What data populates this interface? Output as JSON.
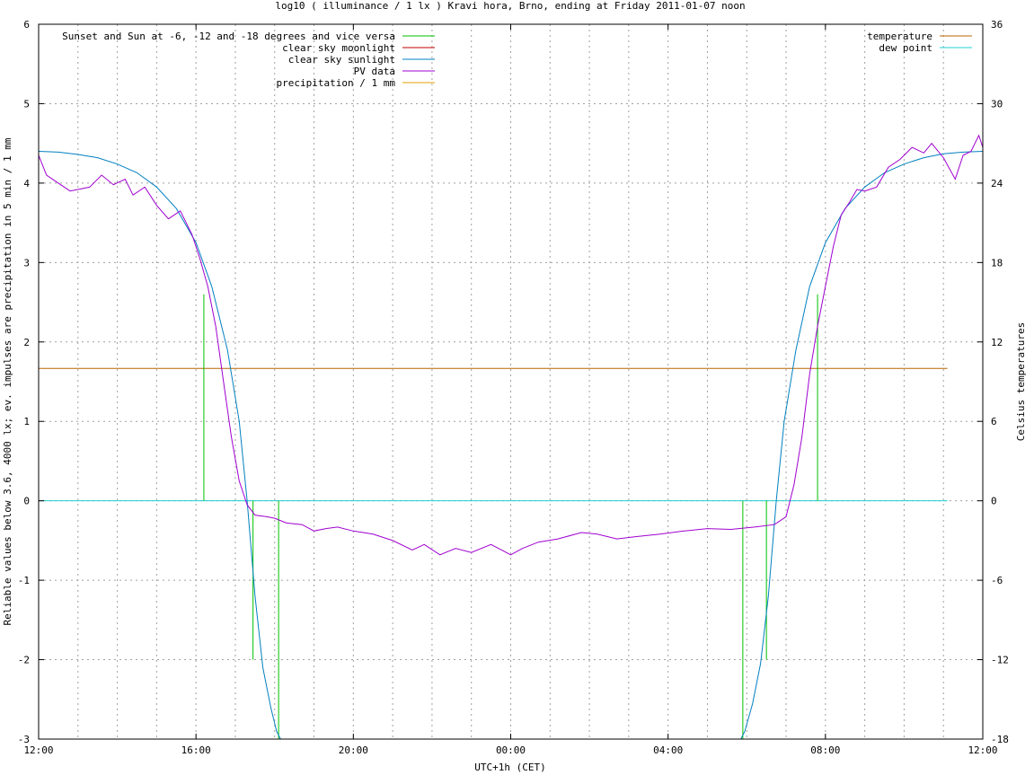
{
  "chart_data": {
    "type": "line",
    "title": "log10 ( illuminance / 1 lx ) Kravi hora, Brno, ending at Friday 2011-01-07 noon",
    "xlabel": "UTC+1h (CET)",
    "ylabel": "Reliable values below 3.6, 4000 lx; ev. impulses are precipitation in 5 min / 1 mm",
    "y2label": "Celsius temperatures",
    "xlim_hours": [
      0,
      24
    ],
    "ylim": [
      -3,
      6
    ],
    "y2lim": [
      -18,
      36
    ],
    "x_ticks": [
      {
        "hour": 0,
        "label": "12:00"
      },
      {
        "hour": 4,
        "label": "16:00"
      },
      {
        "hour": 8,
        "label": "20:00"
      },
      {
        "hour": 12,
        "label": "00:00"
      },
      {
        "hour": 16,
        "label": "04:00"
      },
      {
        "hour": 20,
        "label": "08:00"
      },
      {
        "hour": 24,
        "label": "12:00"
      }
    ],
    "y_ticks": [
      "6",
      "5",
      "4",
      "3",
      "2",
      "1",
      "0",
      "-1",
      "-2",
      "-3"
    ],
    "y2_ticks": [
      "36",
      "30",
      "24",
      "18",
      "12",
      "6",
      "0",
      "-6",
      "-12",
      "-18"
    ],
    "grid": true,
    "legend_left": [
      {
        "name": "Sunset and Sun at -6, -12 and -18 degrees and vice versa",
        "color": "#00c000"
      },
      {
        "name": "clear sky moonlight",
        "color": "#c00000"
      },
      {
        "name": "clear sky sunlight",
        "color": "#0080c0"
      },
      {
        "name": "PV data",
        "color": "#a000d0"
      },
      {
        "name": "precipitation / 1 mm",
        "color": "#e0a000"
      }
    ],
    "legend_right": [
      {
        "name": "temperature",
        "color": "#b86400"
      },
      {
        "name": "dew point",
        "color": "#20d0d0"
      }
    ],
    "sun_events": [
      {
        "hour": 4.2,
        "height": 2.6
      },
      {
        "hour": 5.45,
        "height": -2.0
      },
      {
        "hour": 6.1,
        "height": -3.0
      },
      {
        "hour": 17.9,
        "height": -3.0
      },
      {
        "hour": 18.5,
        "height": -2.0
      },
      {
        "hour": 19.8,
        "height": 2.6
      }
    ],
    "clear_sky_sunlight": [
      [
        0.0,
        4.4
      ],
      [
        0.5,
        4.39
      ],
      [
        1.0,
        4.36
      ],
      [
        1.5,
        4.32
      ],
      [
        2.0,
        4.24
      ],
      [
        2.5,
        4.13
      ],
      [
        3.0,
        3.95
      ],
      [
        3.5,
        3.68
      ],
      [
        4.0,
        3.25
      ],
      [
        4.4,
        2.7
      ],
      [
        4.8,
        1.9
      ],
      [
        5.1,
        1.0
      ],
      [
        5.3,
        0.0
      ],
      [
        5.5,
        -1.2
      ],
      [
        5.7,
        -2.1
      ],
      [
        5.9,
        -2.6
      ],
      [
        6.05,
        -2.9
      ],
      [
        6.15,
        -3.0
      ],
      [
        17.85,
        -3.0
      ],
      [
        17.95,
        -2.9
      ],
      [
        18.15,
        -2.55
      ],
      [
        18.35,
        -2.05
      ],
      [
        18.55,
        -1.2
      ],
      [
        18.75,
        0.0
      ],
      [
        18.95,
        1.0
      ],
      [
        19.25,
        1.9
      ],
      [
        19.6,
        2.7
      ],
      [
        20.0,
        3.25
      ],
      [
        20.5,
        3.68
      ],
      [
        21.0,
        3.95
      ],
      [
        21.5,
        4.13
      ],
      [
        22.0,
        4.24
      ],
      [
        22.5,
        4.32
      ],
      [
        23.0,
        4.37
      ],
      [
        23.5,
        4.39
      ],
      [
        24.0,
        4.4
      ]
    ],
    "pv_data": [
      [
        0.0,
        4.35
      ],
      [
        0.2,
        4.1
      ],
      [
        0.5,
        4.0
      ],
      [
        0.8,
        3.9
      ],
      [
        1.0,
        3.92
      ],
      [
        1.3,
        3.95
      ],
      [
        1.6,
        4.1
      ],
      [
        1.9,
        3.98
      ],
      [
        2.2,
        4.05
      ],
      [
        2.4,
        3.85
      ],
      [
        2.7,
        3.95
      ],
      [
        3.0,
        3.72
      ],
      [
        3.3,
        3.55
      ],
      [
        3.6,
        3.65
      ],
      [
        3.9,
        3.35
      ],
      [
        4.1,
        3.05
      ],
      [
        4.3,
        2.7
      ],
      [
        4.5,
        2.2
      ],
      [
        4.7,
        1.5
      ],
      [
        4.9,
        0.8
      ],
      [
        5.1,
        0.25
      ],
      [
        5.3,
        -0.05
      ],
      [
        5.5,
        -0.18
      ],
      [
        5.8,
        -0.2
      ],
      [
        6.0,
        -0.22
      ],
      [
        6.3,
        -0.28
      ],
      [
        6.7,
        -0.3
      ],
      [
        7.0,
        -0.38
      ],
      [
        7.3,
        -0.35
      ],
      [
        7.6,
        -0.33
      ],
      [
        8.0,
        -0.38
      ],
      [
        8.5,
        -0.42
      ],
      [
        9.0,
        -0.5
      ],
      [
        9.5,
        -0.62
      ],
      [
        9.8,
        -0.55
      ],
      [
        10.2,
        -0.68
      ],
      [
        10.6,
        -0.6
      ],
      [
        11.0,
        -0.65
      ],
      [
        11.5,
        -0.55
      ],
      [
        12.0,
        -0.68
      ],
      [
        12.3,
        -0.6
      ],
      [
        12.7,
        -0.52
      ],
      [
        13.2,
        -0.48
      ],
      [
        13.8,
        -0.4
      ],
      [
        14.2,
        -0.42
      ],
      [
        14.7,
        -0.48
      ],
      [
        15.2,
        -0.45
      ],
      [
        15.8,
        -0.42
      ],
      [
        16.4,
        -0.38
      ],
      [
        17.0,
        -0.35
      ],
      [
        17.6,
        -0.36
      ],
      [
        18.2,
        -0.33
      ],
      [
        18.7,
        -0.3
      ],
      [
        19.0,
        -0.2
      ],
      [
        19.2,
        0.2
      ],
      [
        19.4,
        0.8
      ],
      [
        19.6,
        1.6
      ],
      [
        19.8,
        2.2
      ],
      [
        20.0,
        2.7
      ],
      [
        20.2,
        3.2
      ],
      [
        20.4,
        3.6
      ],
      [
        20.6,
        3.75
      ],
      [
        20.8,
        3.92
      ],
      [
        21.0,
        3.9
      ],
      [
        21.3,
        3.95
      ],
      [
        21.6,
        4.2
      ],
      [
        21.9,
        4.3
      ],
      [
        22.2,
        4.45
      ],
      [
        22.5,
        4.38
      ],
      [
        22.7,
        4.5
      ],
      [
        23.0,
        4.32
      ],
      [
        23.3,
        4.05
      ],
      [
        23.5,
        4.35
      ],
      [
        23.7,
        4.4
      ],
      [
        23.9,
        4.6
      ],
      [
        24.0,
        4.45
      ]
    ],
    "temperature_celsius": 10.0,
    "dew_point_celsius": 0.0,
    "line_end_hour": 23.1
  }
}
